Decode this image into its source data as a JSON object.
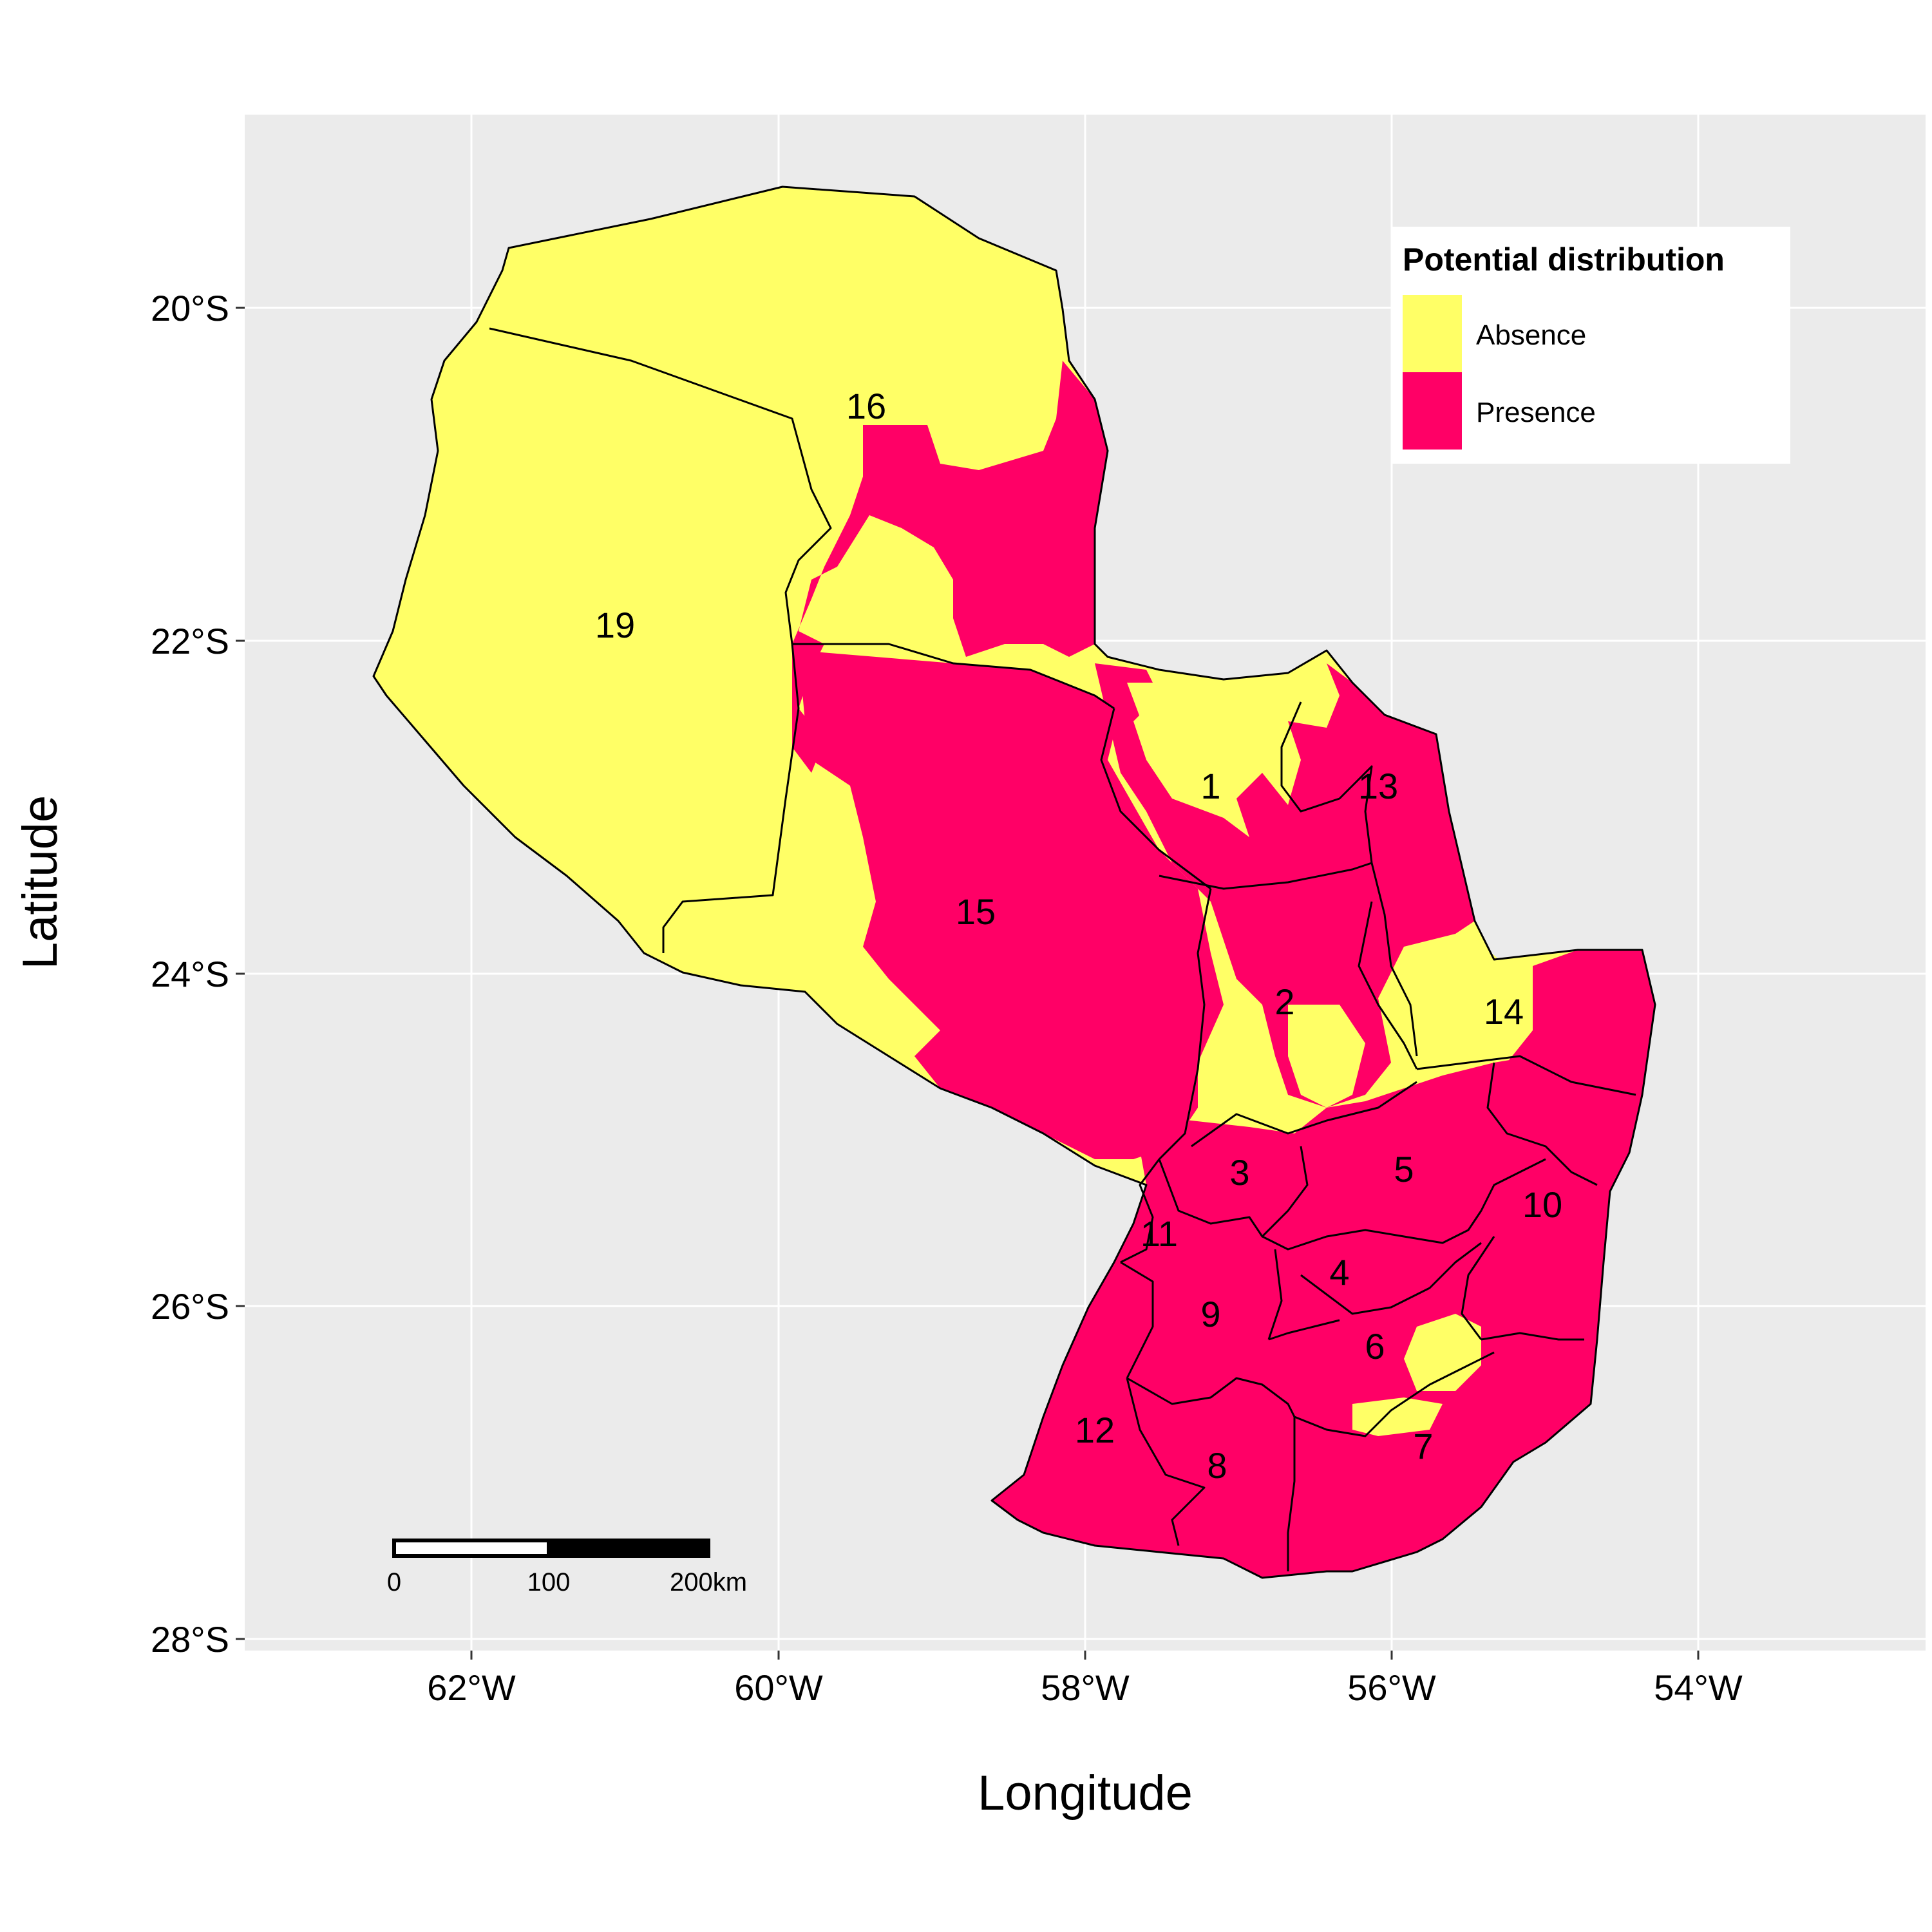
{
  "axes": {
    "x_title": "Longitude",
    "y_title": "Latitude",
    "x_ticks": [
      "62°W",
      "60°W",
      "58°W",
      "56°W",
      "54°W"
    ],
    "y_ticks": [
      "20°S",
      "22°S",
      "24°S",
      "26°S",
      "28°S"
    ]
  },
  "legend": {
    "title": "Potential distribution",
    "items": [
      {
        "label": "Absence",
        "color": "#ffff66"
      },
      {
        "label": "Presence",
        "color": "#ff0066"
      }
    ]
  },
  "colors": {
    "panel_background": "#ebebeb",
    "absence": "#ffff66",
    "presence": "#ff0066"
  },
  "scale_bar": {
    "labels": [
      "0",
      "100",
      "200km"
    ]
  },
  "regions": [
    {
      "id": "1"
    },
    {
      "id": "2"
    },
    {
      "id": "3"
    },
    {
      "id": "4"
    },
    {
      "id": "5"
    },
    {
      "id": "6"
    },
    {
      "id": "7"
    },
    {
      "id": "8"
    },
    {
      "id": "9"
    },
    {
      "id": "10"
    },
    {
      "id": "11"
    },
    {
      "id": "12"
    },
    {
      "id": "13"
    },
    {
      "id": "14"
    },
    {
      "id": "15"
    },
    {
      "id": "16"
    },
    {
      "id": "19"
    }
  ]
}
